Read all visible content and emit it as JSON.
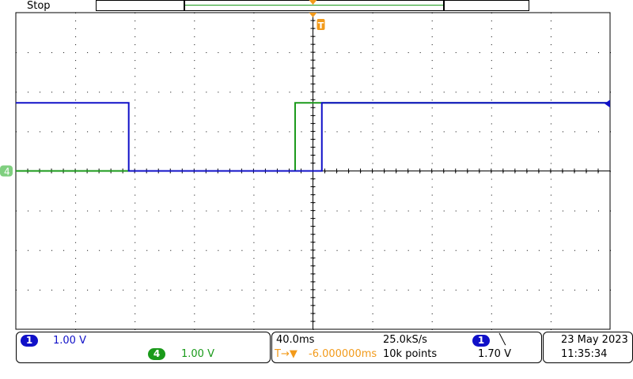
{
  "status": "Stop",
  "colors": {
    "ch1": "#1010c8",
    "ch4": "#1a9a1a",
    "trigger": "#f29a1a",
    "grid": "#000000"
  },
  "grid": {
    "h_divisions": 10,
    "v_divisions": 8
  },
  "channels": [
    {
      "id": "1",
      "scale": "1.00 V",
      "trace": {
        "levels_v": [
          1.72,
          0,
          1.72
        ],
        "transitions_div": [
          -3.1,
          0.15
        ]
      }
    },
    {
      "id": "4",
      "scale": "1.00 V",
      "trace": {
        "levels_v": [
          0,
          1.72
        ],
        "transitions_div": [
          -0.3
        ]
      }
    }
  ],
  "timebase": {
    "scale": "40.0ms",
    "sample_rate": "25.0kS/s",
    "delay": "-6.000000ms",
    "points": "10k points"
  },
  "trigger": {
    "source": "1",
    "slope": "falling",
    "slope_glyph": "╲",
    "level": "1.70 V",
    "marker": "T",
    "delay_icon": "T→▼"
  },
  "datetime": {
    "date": "23 May  2023",
    "time": "11:35:34"
  }
}
